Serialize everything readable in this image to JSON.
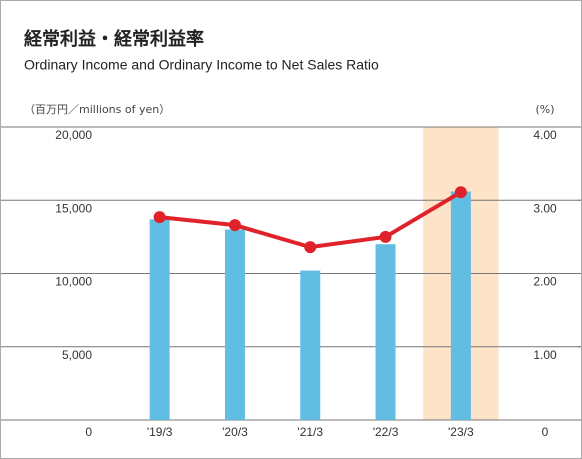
{
  "chart_data": {
    "type": "bar_line",
    "title": "経常利益・経常利益率",
    "subtitle": "Ordinary Income and Ordinary Income to Net Sales Ratio",
    "ylabel": "（百万円／millions of yen）",
    "y2label": "(%)",
    "categories": [
      "'19/3",
      "'20/3",
      "'21/3",
      "'22/3",
      "'23/3"
    ],
    "series": [
      {
        "name": "Ordinary Income",
        "color": "#62bde3",
        "values": [
          13700,
          13000,
          10200,
          12000,
          15600
        ]
      },
      {
        "name": "Ordinary Income to Net Sales Ratio",
        "color": "#e0222a",
        "axis": "y2",
        "values": [
          2.77,
          2.66,
          2.36,
          2.5,
          3.11
        ]
      }
    ],
    "ylim": [
      0,
      20000
    ],
    "yticks": [
      0,
      {
        "value": 5000,
        "label": "5,000"
      },
      {
        "value": 10000,
        "label": "10,000"
      },
      {
        "value": 15000,
        "label": "15,000"
      },
      {
        "value": 20000,
        "label": "20,000"
      }
    ],
    "y2lim": [
      0,
      4
    ],
    "y2ticks": [
      0,
      {
        "value": 1,
        "label": "1.00"
      },
      {
        "value": 2,
        "label": "2.00"
      },
      {
        "value": 3,
        "label": "3.00"
      },
      {
        "value": 4,
        "label": "4.00"
      }
    ],
    "grid": true,
    "highlight_color": "#fde3c8"
  }
}
